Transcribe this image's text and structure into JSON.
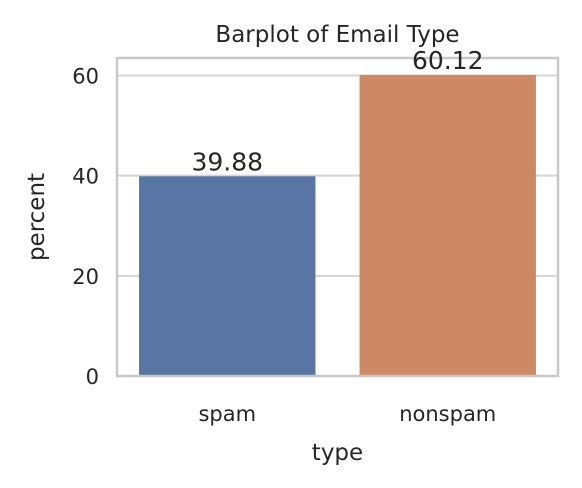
{
  "chart_data": {
    "type": "bar",
    "title": "Barplot of Email  Type",
    "xlabel": "type",
    "ylabel": "percent",
    "categories": [
      "spam",
      "nonspam"
    ],
    "values": [
      39.88,
      60.12
    ],
    "value_labels": [
      "39.88",
      "60.12"
    ],
    "ylim": [
      0,
      63.5
    ],
    "yticks": [
      0,
      20,
      40,
      60
    ],
    "grid": true,
    "colors": [
      "#5975a4",
      "#cc8963"
    ]
  }
}
